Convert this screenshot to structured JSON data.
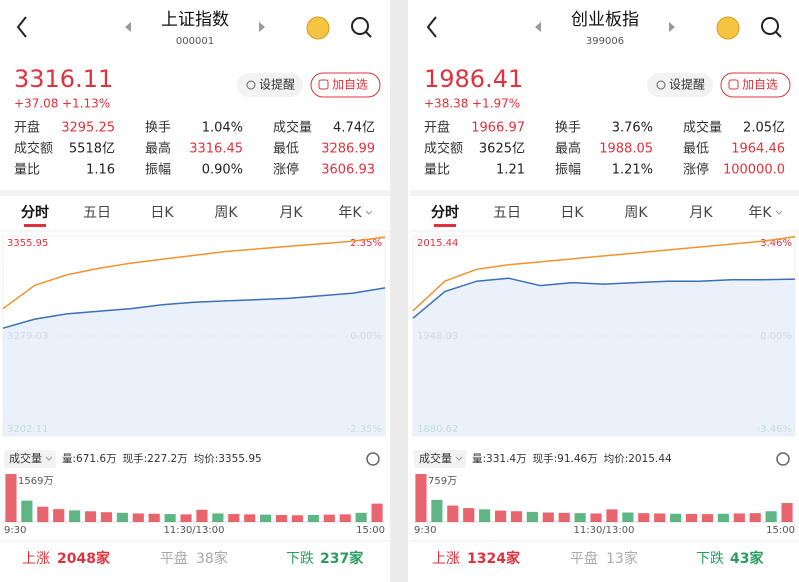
{
  "panels": [
    {
      "header": {
        "title": "上证指数",
        "code": "000001"
      },
      "quote": {
        "price": "3316.11",
        "change": "+37.08",
        "change_pct": "+1.13%"
      },
      "buttons": [
        "设提醒",
        "加自选"
      ],
      "stats": [
        [
          {
            "label": "开盘",
            "value": "3295.25",
            "color": "#e0323c"
          },
          {
            "label": "换手",
            "value": "1.04%",
            "color": "#222222"
          },
          {
            "label": "成交量",
            "value": "4.74亿",
            "color": "#222222"
          }
        ],
        [
          {
            "label": "成交额",
            "value": "5518亿",
            "color": "#222222"
          },
          {
            "label": "最高",
            "value": "3316.45",
            "color": "#e0323c"
          },
          {
            "label": "最低",
            "value": "3286.99",
            "color": "#e0323c"
          }
        ],
        [
          {
            "label": "量比",
            "value": "1.16",
            "color": "#222222"
          },
          {
            "label": "振幅",
            "value": "0.90%",
            "color": "#222222"
          },
          {
            "label": "涨停",
            "value": "3606.93",
            "color": "#e0323c"
          }
        ]
      ],
      "tabs": [
        "分时",
        "五日",
        "日K",
        "周K",
        "月K",
        "年K"
      ],
      "chart": {
        "type": "line",
        "x": [
          0,
          20,
          40,
          60,
          80,
          100,
          120,
          140,
          160,
          180,
          200,
          220,
          240
        ],
        "xlim": [
          0,
          240
        ],
        "ylim": [
          3202.11,
          3355.95
        ],
        "yticks": [
          3202.11,
          3279.03,
          3355.95
        ],
        "y2lim": [
          -2.35,
          2.35
        ],
        "y2ticks": [
          {
            "value": -2.35,
            "label": "-2.35%"
          },
          {
            "value": 0,
            "label": "0.00%"
          },
          {
            "value": 2.35,
            "label": "2.35%"
          }
        ],
        "series": [
          {
            "color": "#f0922e",
            "values": [
              3300,
              3318,
              3326,
              3331,
              3335,
              3338,
              3341,
              3344,
              3346,
              3348,
              3350,
              3352,
              3355
            ]
          },
          {
            "color": "#3b6fb6",
            "values": [
              3285,
              3292,
              3296,
              3298,
              3300,
              3303,
              3305,
              3306,
              3307,
              3308,
              3310,
              3312,
              3316
            ]
          }
        ]
      },
      "volume": {
        "label": "成交量",
        "info": [
          "量:671.6万",
          "现手:227.2万",
          "均价:3355.95"
        ],
        "ylim": [
          0,
          1569
        ],
        "yticks": [
          {
            "value": 1569,
            "label": "1569万"
          }
        ],
        "values": [
          1569,
          700,
          500,
          420,
          380,
          350,
          320,
          300,
          280,
          270,
          260,
          250,
          400,
          280,
          260,
          250,
          240,
          230,
          220,
          230,
          240,
          250,
          300,
          600
        ]
      },
      "time_labels": [
        "9:30",
        "11:30/13:00",
        "15:00"
      ],
      "footer": {
        "up_label": "上涨",
        "up_count": "2048家",
        "flat_label": "平盘",
        "flat_count": "38家",
        "down_label": "下跌",
        "down_count": "237家"
      }
    },
    {
      "header": {
        "title": "创业板指",
        "code": "399006"
      },
      "quote": {
        "price": "1986.41",
        "change": "+38.38",
        "change_pct": "+1.97%"
      },
      "buttons": [
        "设提醒",
        "加自选"
      ],
      "stats": [
        [
          {
            "label": "开盘",
            "value": "1966.97",
            "color": "#e0323c"
          },
          {
            "label": "换手",
            "value": "3.76%",
            "color": "#222222"
          },
          {
            "label": "成交量",
            "value": "2.05亿",
            "color": "#222222"
          }
        ],
        [
          {
            "label": "成交额",
            "value": "3625亿",
            "color": "#222222"
          },
          {
            "label": "最高",
            "value": "1988.05",
            "color": "#e0323c"
          },
          {
            "label": "最低",
            "value": "1964.46",
            "color": "#e0323c"
          }
        ],
        [
          {
            "label": "量比",
            "value": "1.21",
            "color": "#222222"
          },
          {
            "label": "振幅",
            "value": "1.21%",
            "color": "#222222"
          },
          {
            "label": "涨停",
            "value": "100000.0",
            "color": "#e0323c"
          }
        ]
      ],
      "tabs": [
        "分时",
        "五日",
        "日K",
        "周K",
        "月K",
        "年K"
      ],
      "chart": {
        "type": "line",
        "x": [
          0,
          20,
          40,
          60,
          80,
          100,
          120,
          140,
          160,
          180,
          200,
          220,
          240
        ],
        "xlim": [
          0,
          240
        ],
        "ylim": [
          1880.62,
          2015.44
        ],
        "yticks": [
          1880.62,
          1948.03,
          2015.44
        ],
        "y2lim": [
          -3.46,
          3.46
        ],
        "y2ticks": [
          {
            "value": -3.46,
            "label": "-3.46%"
          },
          {
            "value": 0,
            "label": "0.00%"
          },
          {
            "value": 3.46,
            "label": "3.46%"
          }
        ],
        "series": [
          {
            "color": "#f0922e",
            "values": [
              1965,
              1985,
              1993,
              1996,
              1998,
              2000,
              2002,
              2004,
              2006,
              2008,
              2010,
              2012,
              2015
            ]
          },
          {
            "color": "#3b6fb6",
            "values": [
              1960,
              1978,
              1985,
              1987,
              1982,
              1984,
              1983,
              1984,
              1985,
              1985,
              1986,
              1986,
              1986.41
            ]
          }
        ]
      },
      "volume": {
        "label": "成交量",
        "info": [
          "量:331.4万",
          "现手:91.46万",
          "均价:2015.44"
        ],
        "ylim": [
          0,
          759
        ],
        "yticks": [
          {
            "value": 759,
            "label": "759万"
          }
        ],
        "values": [
          759,
          350,
          260,
          220,
          200,
          180,
          170,
          160,
          150,
          145,
          140,
          135,
          200,
          150,
          140,
          135,
          130,
          128,
          125,
          130,
          135,
          140,
          170,
          300
        ]
      },
      "time_labels": [
        "9:30",
        "11:30/13:00",
        "15:00"
      ],
      "footer": {
        "up_label": "上涨",
        "up_count": "1324家",
        "flat_label": "平盘",
        "flat_count": "13家",
        "down_label": "下跌",
        "down_count": "43家"
      }
    }
  ]
}
